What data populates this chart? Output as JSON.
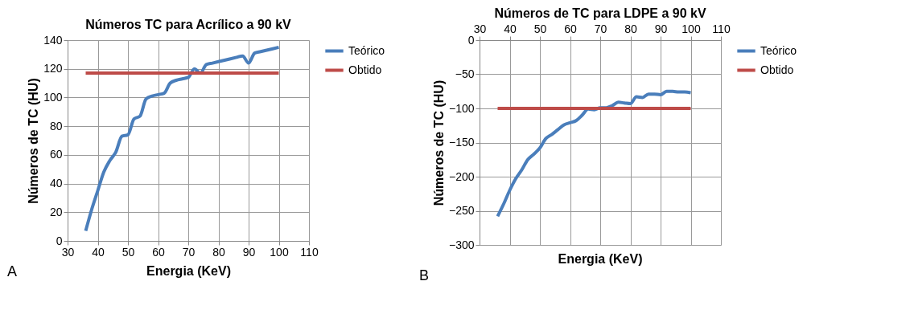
{
  "chart_data": [
    {
      "type": "line",
      "title": "Números TC para Acrílico a 90  kV",
      "xlabel": "Energia (KeV)",
      "ylabel": "Números de TC (HU)",
      "xlim": [
        30,
        110
      ],
      "xticks": [
        30,
        40,
        50,
        60,
        70,
        80,
        90,
        100,
        110
      ],
      "ylim": [
        0,
        140
      ],
      "yticks": [
        0,
        20,
        40,
        60,
        80,
        100,
        120,
        140
      ],
      "grid": true,
      "legend": "right",
      "annotations": [
        "A"
      ],
      "x": [
        36,
        38,
        40,
        42,
        44,
        46,
        48,
        50,
        52,
        54,
        56,
        58,
        60,
        62,
        64,
        66,
        68,
        70,
        72,
        74,
        76,
        78,
        80,
        82,
        84,
        86,
        88,
        90,
        92,
        94,
        96,
        98,
        100
      ],
      "series": [
        {
          "name": "Teórico",
          "color": "#4a7ebb",
          "values": [
            7,
            22,
            35,
            48,
            56,
            62,
            73,
            74,
            85,
            87,
            99,
            101,
            102,
            103,
            110,
            112,
            113,
            114,
            120,
            117,
            123,
            124,
            125,
            126,
            127,
            128,
            129,
            124,
            131,
            132,
            133,
            134,
            135
          ]
        },
        {
          "name": "Obtido",
          "color": "#be4b48",
          "values": [
            117,
            117,
            117,
            117,
            117,
            117,
            117,
            117,
            117,
            117,
            117,
            117,
            117,
            117,
            117,
            117,
            117,
            117,
            117,
            117,
            117,
            117,
            117,
            117,
            117,
            117,
            117,
            117,
            117,
            117,
            117,
            117,
            117
          ]
        }
      ]
    },
    {
      "type": "line",
      "title": "Números de TC para LDPE a 90 kV",
      "xlabel": "Energia (KeV)",
      "ylabel": "Números de TC (HU)",
      "xlim": [
        30,
        110
      ],
      "xticks": [
        30,
        40,
        50,
        60,
        70,
        80,
        90,
        100,
        110
      ],
      "ylim": [
        -300,
        0
      ],
      "yticks": [
        -300,
        -250,
        -200,
        -150,
        -100,
        -50,
        0
      ],
      "grid": true,
      "legend": "right",
      "annotations": [
        "B"
      ],
      "x": [
        36,
        38,
        40,
        42,
        44,
        46,
        48,
        50,
        52,
        54,
        56,
        58,
        60,
        62,
        64,
        66,
        68,
        70,
        72,
        74,
        76,
        78,
        80,
        82,
        84,
        86,
        88,
        90,
        92,
        94,
        96,
        98,
        100
      ],
      "series": [
        {
          "name": "Teórico",
          "color": "#4a7ebb",
          "values": [
            -258,
            -240,
            -220,
            -203,
            -190,
            -175,
            -167,
            -158,
            -144,
            -138,
            -131,
            -124,
            -121,
            -118,
            -110,
            -101,
            -102,
            -99,
            -99,
            -96,
            -91,
            -92,
            -93,
            -83,
            -84,
            -79,
            -79,
            -80,
            -75,
            -75,
            -76,
            -76,
            -77
          ]
        },
        {
          "name": "Obtido",
          "color": "#be4b48",
          "values": [
            -100,
            -100,
            -100,
            -100,
            -100,
            -100,
            -100,
            -100,
            -100,
            -100,
            -100,
            -100,
            -100,
            -100,
            -100,
            -100,
            -100,
            -100,
            -100,
            -100,
            -100,
            -100,
            -100,
            -100,
            -100,
            -100,
            -100,
            -100,
            -100,
            -100,
            -100,
            -100,
            -100
          ]
        }
      ]
    }
  ]
}
